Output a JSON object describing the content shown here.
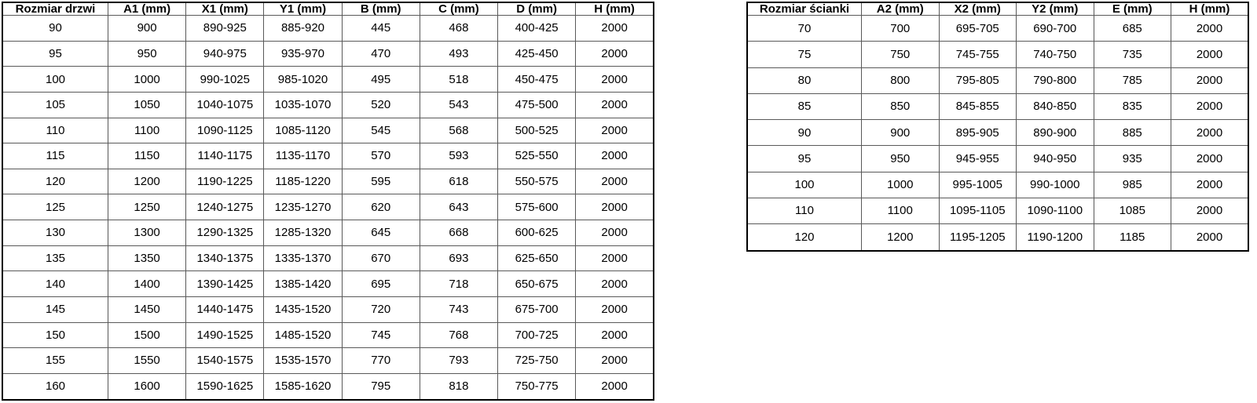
{
  "tables": [
    {
      "title": "Rozmiar drzwi",
      "headers": [
        "Rozmiar drzwi",
        "A1 (mm)",
        "X1 (mm)",
        "Y1 (mm)",
        "B (mm)",
        "C (mm)",
        "D (mm)",
        "H (mm)"
      ],
      "rows": [
        [
          "90",
          "900",
          "890-925",
          "885-920",
          "445",
          "468",
          "400-425",
          "2000"
        ],
        [
          "95",
          "950",
          "940-975",
          "935-970",
          "470",
          "493",
          "425-450",
          "2000"
        ],
        [
          "100",
          "1000",
          "990-1025",
          "985-1020",
          "495",
          "518",
          "450-475",
          "2000"
        ],
        [
          "105",
          "1050",
          "1040-1075",
          "1035-1070",
          "520",
          "543",
          "475-500",
          "2000"
        ],
        [
          "110",
          "1100",
          "1090-1125",
          "1085-1120",
          "545",
          "568",
          "500-525",
          "2000"
        ],
        [
          "115",
          "1150",
          "1140-1175",
          "1135-1170",
          "570",
          "593",
          "525-550",
          "2000"
        ],
        [
          "120",
          "1200",
          "1190-1225",
          "1185-1220",
          "595",
          "618",
          "550-575",
          "2000"
        ],
        [
          "125",
          "1250",
          "1240-1275",
          "1235-1270",
          "620",
          "643",
          "575-600",
          "2000"
        ],
        [
          "130",
          "1300",
          "1290-1325",
          "1285-1320",
          "645",
          "668",
          "600-625",
          "2000"
        ],
        [
          "135",
          "1350",
          "1340-1375",
          "1335-1370",
          "670",
          "693",
          "625-650",
          "2000"
        ],
        [
          "140",
          "1400",
          "1390-1425",
          "1385-1420",
          "695",
          "718",
          "650-675",
          "2000"
        ],
        [
          "145",
          "1450",
          "1440-1475",
          "1435-1520",
          "720",
          "743",
          "675-700",
          "2000"
        ],
        [
          "150",
          "1500",
          "1490-1525",
          "1485-1520",
          "745",
          "768",
          "700-725",
          "2000"
        ],
        [
          "155",
          "1550",
          "1540-1575",
          "1535-1570",
          "770",
          "793",
          "725-750",
          "2000"
        ],
        [
          "160",
          "1600",
          "1590-1625",
          "1585-1620",
          "795",
          "818",
          "750-775",
          "2000"
        ]
      ]
    },
    {
      "title": "Rozmiar ścianki",
      "headers": [
        "Rozmiar ścianki",
        "A2 (mm)",
        "X2 (mm)",
        "Y2 (mm)",
        "E (mm)",
        "H (mm)"
      ],
      "rows": [
        [
          "70",
          "700",
          "695-705",
          "690-700",
          "685",
          "2000"
        ],
        [
          "75",
          "750",
          "745-755",
          "740-750",
          "735",
          "2000"
        ],
        [
          "80",
          "800",
          "795-805",
          "790-800",
          "785",
          "2000"
        ],
        [
          "85",
          "850",
          "845-855",
          "840-850",
          "835",
          "2000"
        ],
        [
          "90",
          "900",
          "895-905",
          "890-900",
          "885",
          "2000"
        ],
        [
          "95",
          "950",
          "945-955",
          "940-950",
          "935",
          "2000"
        ],
        [
          "100",
          "1000",
          "995-1005",
          "990-1000",
          "985",
          "2000"
        ],
        [
          "110",
          "1100",
          "1095-1105",
          "1090-1100",
          "1085",
          "2000"
        ],
        [
          "120",
          "1200",
          "1195-1205",
          "1190-1200",
          "1185",
          "2000"
        ]
      ]
    }
  ],
  "colors": {
    "table_outer_border": "#000000",
    "table_inner_border": "#595959",
    "background": "#ffffff",
    "text": "#000000"
  }
}
